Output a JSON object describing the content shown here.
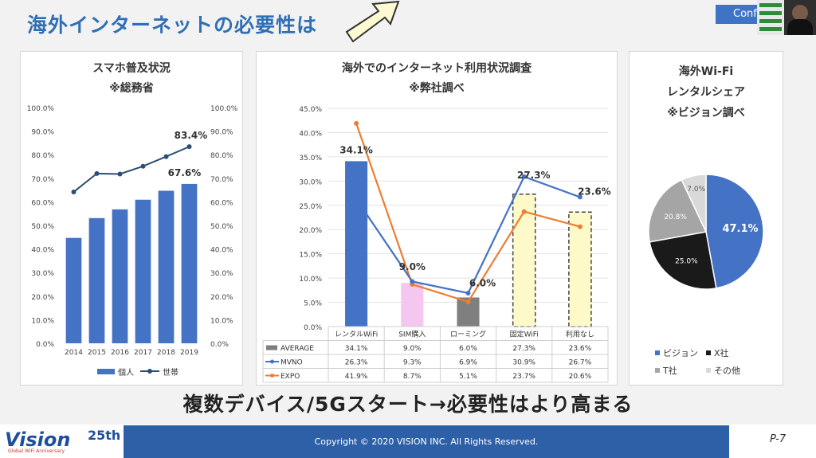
{
  "slide": {
    "title": "海外インターネットの必要性は",
    "conf_label": "Conf",
    "caption": "複数デバイス/5Gスタート→必要性はより高まる",
    "copyright": "Copyright © 2020 VISION INC. All Rights Reserved.",
    "logo_text": "Vision",
    "logo_badge": "25th",
    "logo_sub": "Global WiFi Anniversary",
    "page_number": "P-7"
  },
  "chart_data": [
    {
      "type": "bar+line",
      "title": "スマホ普及状況",
      "subtitle": "※総務省",
      "categories": [
        "2014",
        "2015",
        "2016",
        "2017",
        "2018",
        "2019"
      ],
      "series": [
        {
          "name": "個人",
          "kind": "bar",
          "color": "#4472c4",
          "values": [
            44.7,
            53.1,
            56.8,
            60.9,
            64.7,
            67.6
          ]
        },
        {
          "name": "世帯",
          "kind": "line",
          "color": "#2c4d75",
          "values": [
            64.2,
            72.0,
            71.8,
            75.1,
            79.2,
            83.4
          ]
        }
      ],
      "data_labels": {
        "bar_last": "67.6%",
        "line_last": "83.4%"
      },
      "y_ticks": [
        "0.0%",
        "10.0%",
        "20.0%",
        "30.0%",
        "40.0%",
        "50.0%",
        "60.0%",
        "70.0%",
        "80.0%",
        "90.0%",
        "100.0%"
      ],
      "ylim": [
        0,
        100
      ],
      "legend": "bottom"
    },
    {
      "type": "bar+line",
      "title": "海外でのインターネット利用状況調査",
      "subtitle": "※弊社調べ",
      "categories": [
        "レンタルWiFi",
        "SIM購入",
        "ローミング",
        "固定WiFi",
        "利用なし"
      ],
      "series": [
        {
          "name": "AVERAGE",
          "kind": "bar",
          "values": [
            34.1,
            9.0,
            6.0,
            27.3,
            23.6
          ],
          "display": [
            "34.1%",
            "9.0%",
            "6.0%",
            "27.3%",
            "23.6%"
          ]
        },
        {
          "name": "MVNO",
          "kind": "line",
          "color": "#4472c4",
          "values": [
            26.3,
            9.3,
            6.9,
            30.9,
            26.7
          ],
          "display": [
            "26.3%",
            "9.3%",
            "6.9%",
            "30.9%",
            "26.7%"
          ]
        },
        {
          "name": "EXPO",
          "kind": "line",
          "color": "#ed7d31",
          "values": [
            41.9,
            8.7,
            5.1,
            23.7,
            20.6
          ],
          "display": [
            "41.9%",
            "8.7%",
            "5.1%",
            "23.7%",
            "20.6%"
          ]
        }
      ],
      "bar_colors": [
        "#4472c4",
        "#f5c6f0",
        "#7f7f7f",
        "#fdf9c8",
        "#fdf9c8"
      ],
      "bar_labels": [
        "34.1%",
        "9.0%",
        "6.0%",
        "27.3%",
        "23.6%"
      ],
      "y_ticks": [
        "0.0%",
        "5.0%",
        "10.0%",
        "15.0%",
        "20.0%",
        "25.0%",
        "30.0%",
        "35.0%",
        "40.0%",
        "45.0%"
      ],
      "ylim": [
        0,
        45
      ],
      "legend": "data table"
    },
    {
      "type": "pie",
      "title_lines": [
        "海外Wi-Fi",
        "レンタルシェア",
        "※ビジョン調べ"
      ],
      "slices": [
        {
          "name": "ビジョン",
          "value": 47.1,
          "label": "47.1%",
          "color": "#4472c4",
          "label_color": "#ffffff"
        },
        {
          "name": "X社",
          "value": 25.0,
          "label": "25.0%",
          "color": "#1a1a1a",
          "label_color": "#ffffff"
        },
        {
          "name": "T社",
          "value": 20.8,
          "label": "20.8%",
          "color": "#a5a5a5",
          "label_color": "#ffffff"
        },
        {
          "name": "その他",
          "value": 7.0,
          "label": "7.0%",
          "color": "#d9d9d9",
          "label_color": "#555555"
        }
      ],
      "legend": "bottom"
    }
  ]
}
